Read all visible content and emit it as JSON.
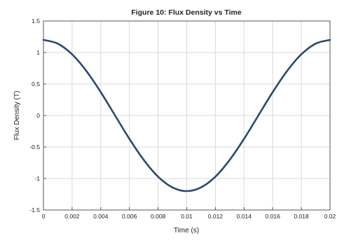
{
  "chart_data": {
    "type": "line",
    "title": "Figure 10: Flux Density vs Time",
    "xlabel": "Time (s)",
    "ylabel": "Flux Density (T)",
    "xlim": [
      0,
      0.02
    ],
    "ylim": [
      -1.5,
      1.5
    ],
    "grid": true,
    "legend": "none",
    "x_ticks": [
      0,
      0.002,
      0.004,
      0.006,
      0.008,
      0.01,
      0.012,
      0.014,
      0.016,
      0.018,
      0.02
    ],
    "x_tick_labels": [
      "0",
      "0.002",
      "0.004",
      "0.006",
      "0.008",
      "0.01",
      "0.012",
      "0.014",
      "0.016",
      "0.018",
      "0.02"
    ],
    "y_ticks": [
      -1.5,
      -1,
      -0.5,
      0,
      0.5,
      1,
      1.5
    ],
    "y_tick_labels": [
      "-1.5",
      "-1",
      "-0.5",
      "0",
      "0.5",
      "1",
      "1.5"
    ],
    "series": [
      {
        "color": "#2b4a6f",
        "x": [
          0,
          0.001,
          0.002,
          0.003,
          0.004,
          0.005,
          0.006,
          0.007,
          0.008,
          0.009,
          0.01,
          0.011,
          0.012,
          0.013,
          0.014,
          0.015,
          0.016,
          0.017,
          0.018,
          0.019,
          0.02
        ],
        "y": [
          1.2,
          1.141,
          0.971,
          0.705,
          0.371,
          0.0,
          -0.371,
          -0.705,
          -0.971,
          -1.141,
          -1.2,
          -1.141,
          -0.971,
          -0.705,
          -0.371,
          0.0,
          0.371,
          0.705,
          0.971,
          1.141,
          1.2
        ]
      }
    ]
  }
}
